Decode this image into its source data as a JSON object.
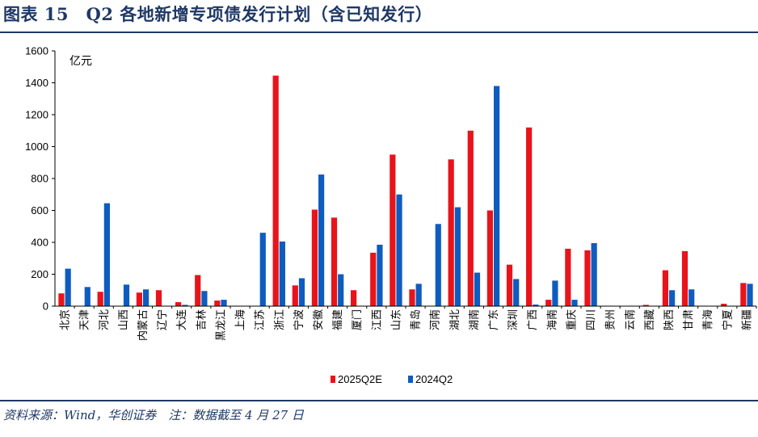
{
  "header": {
    "title": "图表 15　Q2 各地新增专项债发行计划（含已知发行）"
  },
  "footer": {
    "source": "资料来源：Wind，华创证券　注：数据截至 4 月 27 日"
  },
  "chart_data": {
    "type": "bar",
    "unit": "亿元",
    "ylim": [
      0,
      1600
    ],
    "yticks": [
      0,
      200,
      400,
      600,
      800,
      1000,
      1200,
      1400,
      1600
    ],
    "grid": false,
    "legend_position": "bottom",
    "categories": [
      "北京",
      "天津",
      "河北",
      "山西",
      "内蒙古",
      "辽宁",
      "大连",
      "吉林",
      "黑龙江",
      "上海",
      "江苏",
      "浙江",
      "宁波",
      "安徽",
      "福建",
      "厦门",
      "江西",
      "山东",
      "青岛",
      "河南",
      "湖北",
      "湖南",
      "广东",
      "深圳",
      "广西",
      "海南",
      "重庆",
      "四川",
      "贵州",
      "云南",
      "西藏",
      "陕西",
      "甘肃",
      "青海",
      "宁夏",
      "新疆"
    ],
    "series": [
      {
        "name": "2025Q2E",
        "color": "#e8141b",
        "values": [
          80,
          0,
          90,
          0,
          85,
          100,
          25,
          195,
          35,
          0,
          0,
          1445,
          130,
          605,
          555,
          100,
          335,
          950,
          105,
          0,
          920,
          1100,
          600,
          260,
          1120,
          40,
          360,
          350,
          0,
          0,
          8,
          225,
          345,
          0,
          15,
          145
        ]
      },
      {
        "name": "2024Q2",
        "color": "#0f5cbf",
        "values": [
          235,
          120,
          645,
          135,
          105,
          0,
          8,
          95,
          40,
          0,
          460,
          405,
          175,
          825,
          200,
          0,
          385,
          700,
          140,
          515,
          620,
          210,
          1380,
          170,
          10,
          160,
          40,
          395,
          0,
          0,
          0,
          100,
          105,
          0,
          0,
          140
        ]
      }
    ]
  }
}
